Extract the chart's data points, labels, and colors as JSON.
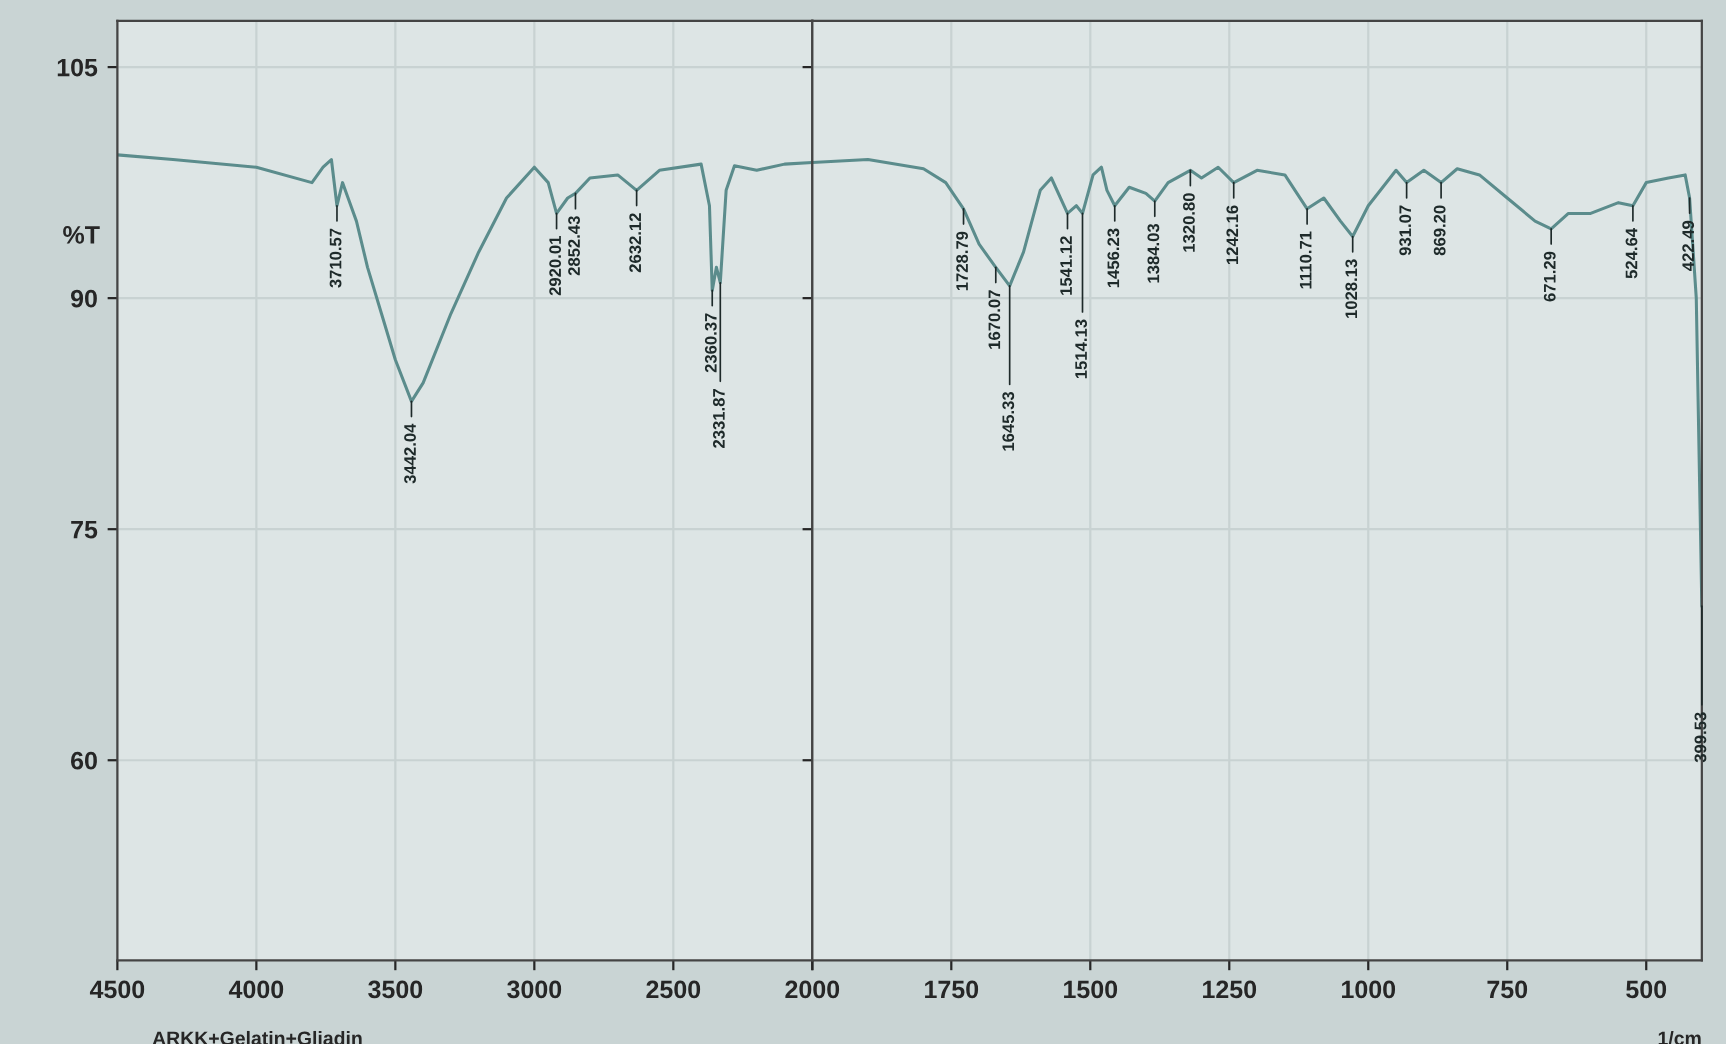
{
  "chart_data": [
    {
      "type": "line",
      "ylabel": "%T",
      "xlim": [
        4500,
        2000
      ],
      "xticks": [
        4500,
        4000,
        3500,
        3000,
        2500,
        2000
      ],
      "ylim": [
        47,
        108
      ],
      "yticks": [
        60,
        75,
        90,
        105
      ],
      "grid": true,
      "marker": "none",
      "line_style": "solid",
      "series": [
        {
          "color": "#5b8c8c",
          "x": [
            4500,
            4300,
            4000,
            3800,
            3760,
            3730,
            3710,
            3690,
            3670,
            3640,
            3600,
            3550,
            3500,
            3442,
            3400,
            3300,
            3200,
            3100,
            3000,
            2950,
            2920,
            2880,
            2852,
            2800,
            2700,
            2632,
            2550,
            2400,
            2370,
            2360,
            2345,
            2331,
            2310,
            2280,
            2200,
            2100,
            2000
          ],
          "values": [
            99.3,
            99,
            98.5,
            97.5,
            98.5,
            99,
            96,
            97.5,
            96.5,
            95,
            92,
            89,
            86,
            83.3,
            84.5,
            89,
            93,
            96.5,
            98.5,
            97.5,
            95.5,
            96.5,
            96.8,
            97.8,
            98,
            97,
            98.3,
            98.7,
            96,
            90.5,
            92,
            91,
            97,
            98.6,
            98.3,
            98.7,
            98.8
          ]
        }
      ],
      "annotations": [
        {
          "text": "3710.57",
          "x": 3710,
          "y": 96
        },
        {
          "text": "3442.04",
          "x": 3442,
          "y": 83.3
        },
        {
          "text": "2920.01",
          "x": 2920,
          "y": 95.5
        },
        {
          "text": "2852.43",
          "x": 2852,
          "y": 96.8
        },
        {
          "text": "2632.12",
          "x": 2632,
          "y": 97
        },
        {
          "text": "2360.37",
          "x": 2360,
          "y": 90.5
        },
        {
          "text": "2331.87",
          "x": 2331,
          "y": 91
        },
        "ARKK+Gelatin+Gliadin"
      ]
    },
    {
      "type": "line",
      "xlabel": "1/cm",
      "xlim": [
        2000,
        400
      ],
      "xticks": [
        {
          "value": 2000,
          "label": null
        },
        1750,
        1500,
        1250,
        1000,
        750,
        500
      ],
      "ylim": [
        47,
        108
      ],
      "yticks": [
        60,
        75,
        90,
        105
      ],
      "tick_labels": "x",
      "grid": true,
      "marker": "none",
      "line_style": "solid",
      "series": [
        {
          "color": "#5b8c8c",
          "x": [
            2000,
            1900,
            1800,
            1760,
            1728,
            1700,
            1670,
            1645,
            1620,
            1590,
            1570,
            1541,
            1525,
            1514,
            1495,
            1480,
            1470,
            1456,
            1430,
            1400,
            1384,
            1360,
            1320,
            1300,
            1270,
            1242,
            1200,
            1150,
            1110,
            1080,
            1050,
            1028,
            1000,
            950,
            931,
            900,
            869,
            840,
            800,
            750,
            700,
            671,
            640,
            600,
            550,
            524,
            500,
            460,
            430,
            422,
            410,
            400
          ],
          "values": [
            98.8,
            99,
            98.4,
            97.5,
            95.8,
            93.5,
            92,
            90.8,
            93,
            97,
            97.8,
            95.5,
            96,
            95.5,
            98,
            98.5,
            97,
            96,
            97.2,
            96.8,
            96.3,
            97.5,
            98.3,
            97.8,
            98.5,
            97.5,
            98.3,
            98,
            95.8,
            96.5,
            95,
            94,
            96,
            98.3,
            97.5,
            98.3,
            97.5,
            98.4,
            98,
            96.5,
            95,
            94.5,
            95.5,
            95.5,
            96.2,
            96,
            97.5,
            97.8,
            98,
            96.5,
            90,
            70
          ]
        }
      ],
      "annotations": [
        {
          "text": "1728.79",
          "x": 1728,
          "y": 95.8
        },
        {
          "text": "1670.07",
          "x": 1670,
          "y": 92
        },
        {
          "text": "1645.33",
          "x": 1645,
          "y": 90.8
        },
        {
          "text": "1541.12",
          "x": 1541,
          "y": 95.5
        },
        {
          "text": "1514.13",
          "x": 1514,
          "y": 95.5
        },
        {
          "text": "1456.23",
          "x": 1456,
          "y": 96
        },
        {
          "text": "1384.03",
          "x": 1384,
          "y": 96.3
        },
        {
          "text": "1320.80",
          "x": 1320,
          "y": 98.3
        },
        {
          "text": "1242.16",
          "x": 1242,
          "y": 97.5
        },
        {
          "text": "1110.71",
          "x": 1110,
          "y": 95.8
        },
        {
          "text": "1028.13",
          "x": 1028,
          "y": 94
        },
        {
          "text": "931.07",
          "x": 931,
          "y": 97.5
        },
        {
          "text": "869.20",
          "x": 869,
          "y": 97.5
        },
        {
          "text": "671.29",
          "x": 671,
          "y": 94.5
        },
        {
          "text": "524.64",
          "x": 524,
          "y": 96
        },
        {
          "text": "422.49",
          "x": 422,
          "y": 96.5
        },
        {
          "text": "399.53",
          "x": 400,
          "y": 70
        }
      ]
    }
  ]
}
